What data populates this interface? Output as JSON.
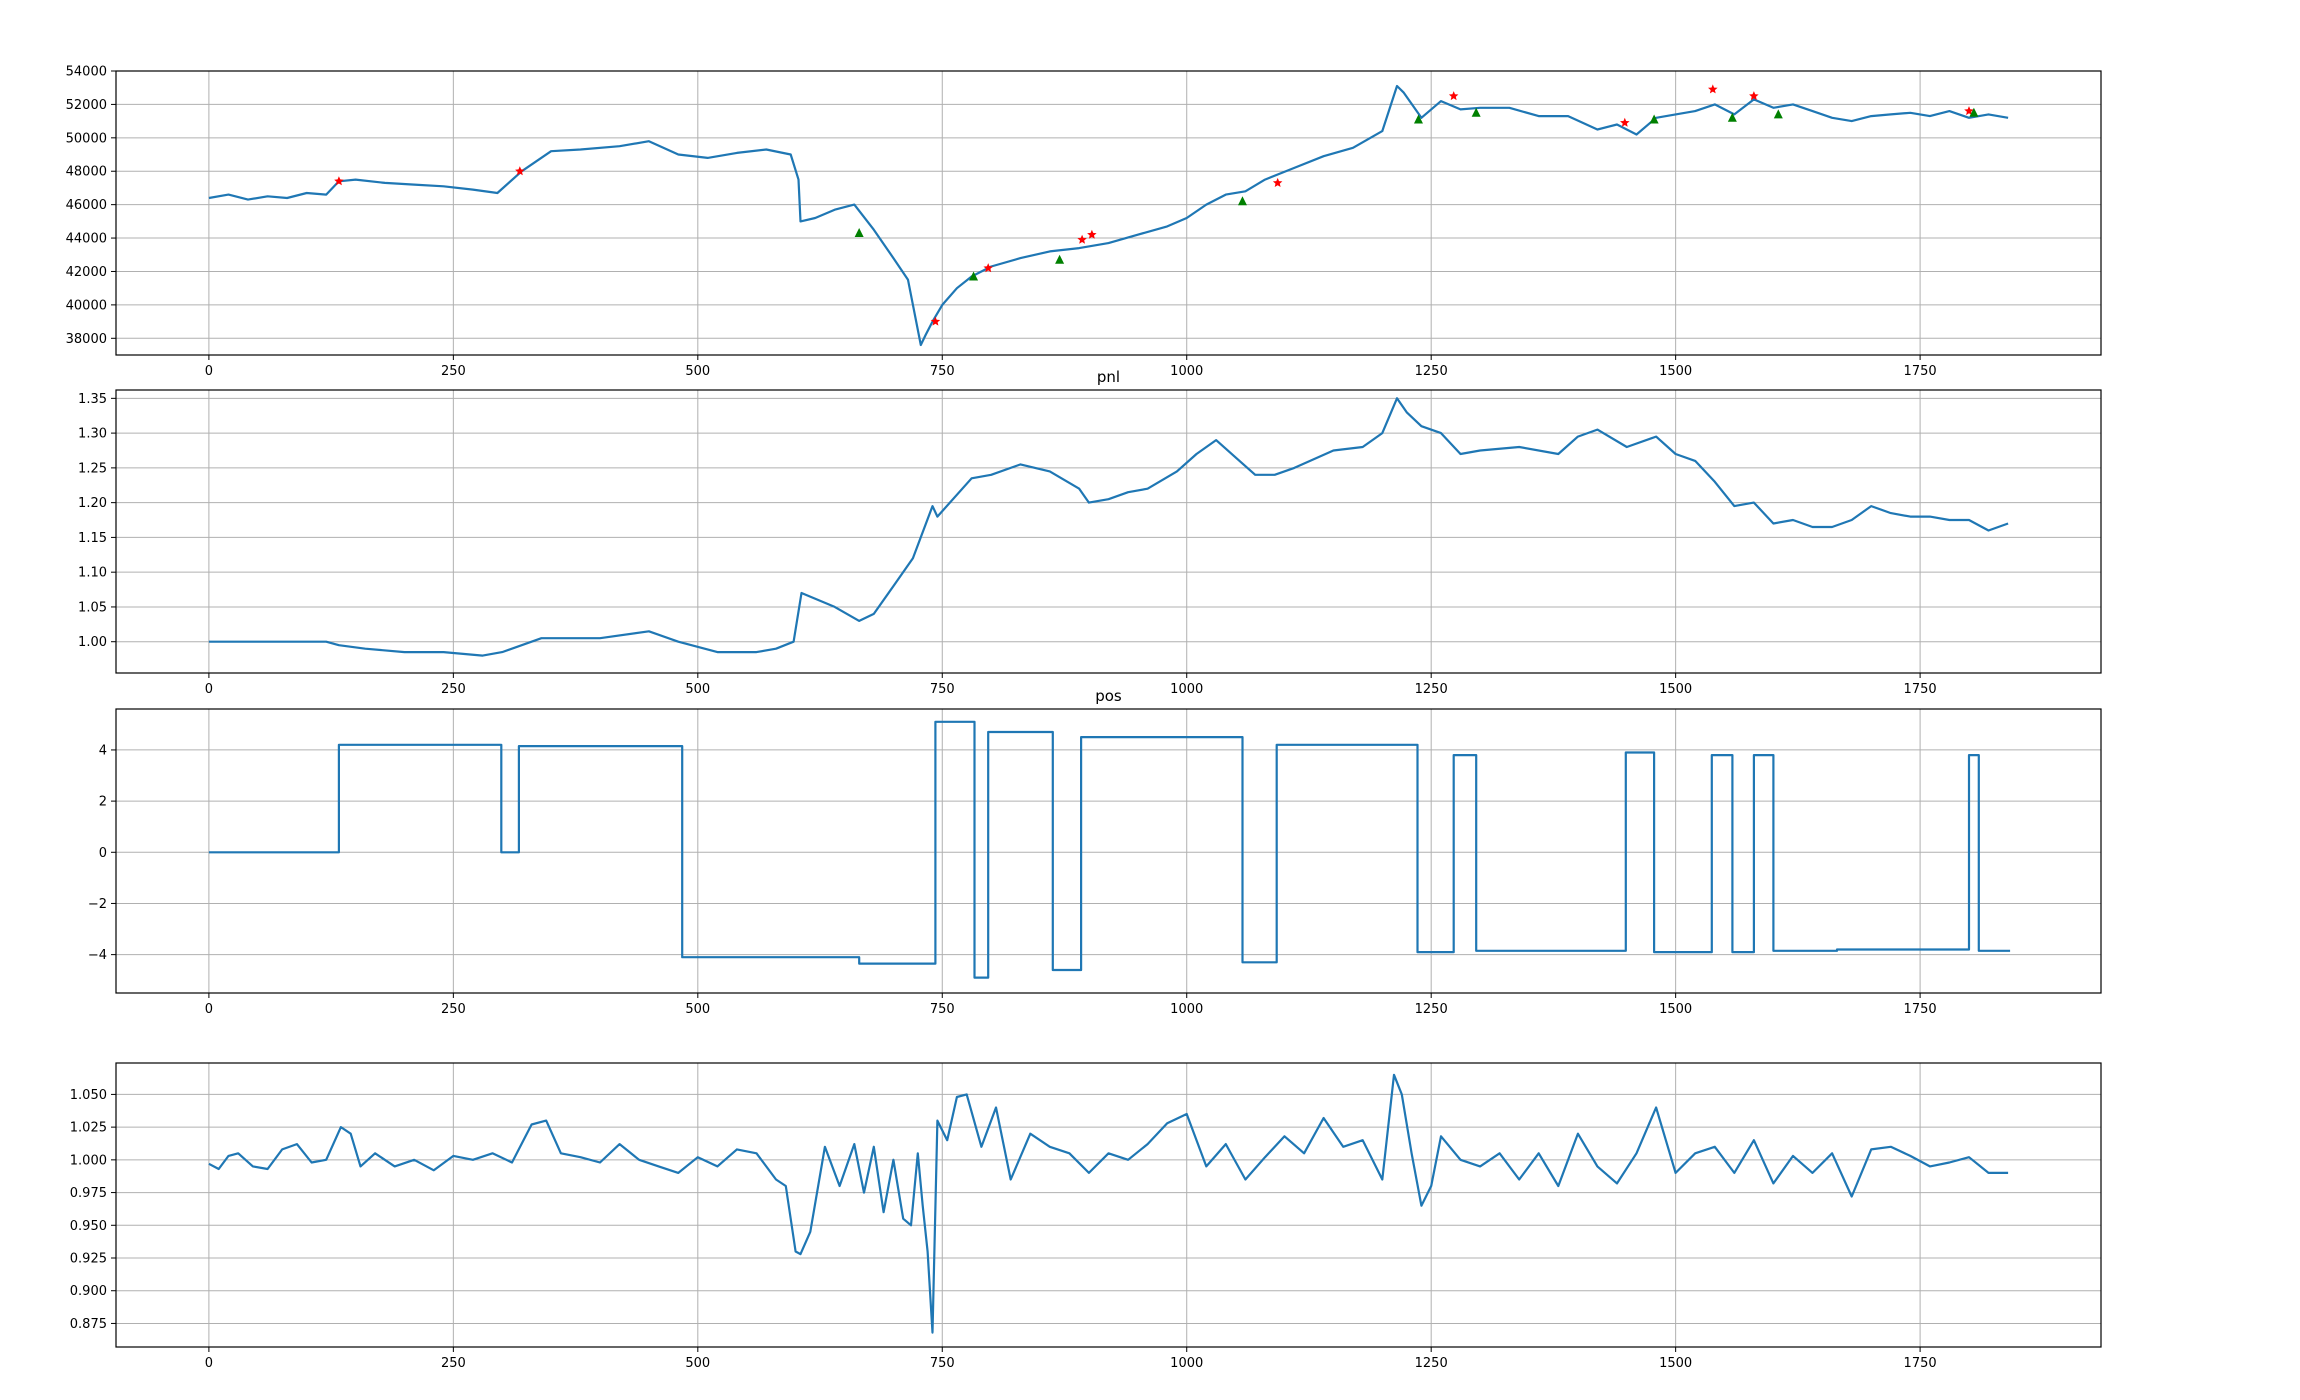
{
  "colors": {
    "line": "#1f77b4",
    "sell_marker": "#ff0000",
    "buy_marker": "#008000",
    "grid": "#b0b0b0"
  },
  "chart_data": [
    {
      "type": "line",
      "title": "",
      "xlim": [
        -95,
        1935
      ],
      "ylim": [
        37000,
        54000
      ],
      "xticks": [
        0,
        250,
        500,
        750,
        1000,
        1250,
        1500,
        1750
      ],
      "yticks": [
        38000,
        40000,
        42000,
        44000,
        46000,
        48000,
        50000,
        52000,
        54000
      ],
      "ytick_decimals": 0,
      "grid": true,
      "series": [
        {
          "x": [
            0,
            20,
            40,
            60,
            80,
            100,
            120,
            133,
            150,
            180,
            210,
            240,
            270,
            295,
            320,
            350,
            380,
            420,
            450,
            480,
            510,
            540,
            570,
            595,
            603,
            605,
            620,
            640,
            660,
            680,
            700,
            715,
            728,
            733,
            740,
            750,
            765,
            780,
            800,
            830,
            860,
            890,
            920,
            950,
            980,
            1000,
            1020,
            1040,
            1060,
            1080,
            1110,
            1140,
            1170,
            1200,
            1215,
            1222,
            1240,
            1260,
            1280,
            1300,
            1330,
            1360,
            1390,
            1420,
            1440,
            1460,
            1480,
            1500,
            1520,
            1540,
            1560,
            1580,
            1600,
            1620,
            1640,
            1660,
            1680,
            1700,
            1720,
            1740,
            1760,
            1780,
            1800,
            1820,
            1840
          ],
          "y": [
            46400,
            46600,
            46300,
            46500,
            46400,
            46700,
            46600,
            47400,
            47500,
            47300,
            47200,
            47100,
            46900,
            46700,
            48000,
            49200,
            49300,
            49500,
            49800,
            49000,
            48800,
            49100,
            49300,
            49000,
            47500,
            45000,
            45200,
            45700,
            46000,
            44500,
            42800,
            41500,
            37600,
            38200,
            39000,
            40000,
            41000,
            41700,
            42300,
            42800,
            43200,
            43400,
            43700,
            44200,
            44700,
            45200,
            46000,
            46600,
            46800,
            47500,
            48200,
            48900,
            49400,
            50400,
            53100,
            52700,
            51200,
            52200,
            51700,
            51800,
            51800,
            51300,
            51300,
            50500,
            50800,
            50200,
            51200,
            51400,
            51600,
            52000,
            51400,
            52300,
            51800,
            52000,
            51600,
            51200,
            51000,
            51300,
            51400,
            51500,
            51300,
            51600,
            51200,
            51400,
            51200
          ]
        }
      ],
      "markers": {
        "sell": {
          "x": [
            133,
            318,
            743,
            797,
            893,
            903,
            1093,
            1273,
            1448,
            1538,
            1580,
            1800
          ],
          "y": [
            47400,
            48000,
            39000,
            42200,
            43900,
            44200,
            47300,
            52500,
            50900,
            52900,
            52500,
            51600
          ]
        },
        "buy": {
          "x": [
            665,
            782,
            870,
            1057,
            1237,
            1296,
            1478,
            1558,
            1605,
            1805
          ],
          "y": [
            44300,
            41700,
            42700,
            46200,
            51100,
            51500,
            51100,
            51200,
            51400,
            51500
          ]
        }
      }
    },
    {
      "type": "line",
      "title": "pnl",
      "xlim": [
        -95,
        1935
      ],
      "ylim": [
        0.955,
        1.362
      ],
      "xticks": [
        0,
        250,
        500,
        750,
        1000,
        1250,
        1500,
        1750
      ],
      "yticks": [
        1.0,
        1.05,
        1.1,
        1.15,
        1.2,
        1.25,
        1.3,
        1.35
      ],
      "ytick_decimals": 2,
      "grid": true,
      "series": [
        {
          "x": [
            0,
            60,
            120,
            133,
            160,
            200,
            240,
            280,
            300,
            340,
            400,
            450,
            480,
            520,
            560,
            580,
            598,
            606,
            640,
            665,
            680,
            700,
            720,
            740,
            745,
            780,
            800,
            830,
            860,
            890,
            900,
            920,
            940,
            960,
            990,
            1010,
            1030,
            1050,
            1070,
            1090,
            1110,
            1150,
            1180,
            1200,
            1215,
            1225,
            1240,
            1260,
            1280,
            1300,
            1340,
            1380,
            1400,
            1420,
            1450,
            1480,
            1500,
            1520,
            1540,
            1560,
            1580,
            1600,
            1620,
            1640,
            1660,
            1680,
            1700,
            1720,
            1740,
            1760,
            1780,
            1800,
            1820,
            1840
          ],
          "y": [
            1.0,
            1.0,
            1.0,
            0.995,
            0.99,
            0.985,
            0.985,
            0.98,
            0.985,
            1.005,
            1.005,
            1.015,
            1.0,
            0.985,
            0.985,
            0.99,
            1.0,
            1.07,
            1.05,
            1.03,
            1.04,
            1.08,
            1.12,
            1.195,
            1.18,
            1.235,
            1.24,
            1.255,
            1.245,
            1.22,
            1.2,
            1.205,
            1.215,
            1.22,
            1.245,
            1.27,
            1.29,
            1.265,
            1.24,
            1.24,
            1.25,
            1.275,
            1.28,
            1.3,
            1.35,
            1.33,
            1.31,
            1.3,
            1.27,
            1.275,
            1.28,
            1.27,
            1.295,
            1.305,
            1.28,
            1.295,
            1.27,
            1.26,
            1.23,
            1.195,
            1.2,
            1.17,
            1.175,
            1.165,
            1.165,
            1.175,
            1.195,
            1.185,
            1.18,
            1.18,
            1.175,
            1.175,
            1.16,
            1.17
          ]
        }
      ]
    },
    {
      "type": "line",
      "title": "pos",
      "xlim": [
        -95,
        1935
      ],
      "ylim": [
        -5.5,
        5.6
      ],
      "xticks": [
        0,
        250,
        500,
        750,
        1000,
        1250,
        1500,
        1750
      ],
      "yticks": [
        -4,
        -2,
        0,
        2,
        4
      ],
      "ytick_decimals": 0,
      "step": true,
      "grid": true,
      "series": [
        {
          "x": [
            0,
            133,
            299,
            317,
            484,
            665,
            743,
            783,
            797,
            863,
            892,
            1057,
            1092,
            1236,
            1273,
            1296,
            1449,
            1478,
            1537,
            1558,
            1580,
            1600,
            1665,
            1800,
            1810,
            1842
          ],
          "y": [
            0,
            4.2,
            0,
            4.15,
            -4.1,
            -4.35,
            5.1,
            -4.9,
            4.7,
            -4.6,
            4.5,
            -4.3,
            4.2,
            -3.9,
            3.8,
            -3.85,
            3.9,
            -3.9,
            3.8,
            -3.9,
            3.8,
            -3.85,
            -3.8,
            3.8,
            -3.85,
            -3.85
          ]
        }
      ]
    },
    {
      "type": "line",
      "title": "",
      "xlim": [
        -95,
        1935
      ],
      "ylim": [
        0.857,
        1.074
      ],
      "xticks": [
        0,
        250,
        500,
        750,
        1000,
        1250,
        1500,
        1750
      ],
      "yticks": [
        0.875,
        0.9,
        0.925,
        0.95,
        0.975,
        1.0,
        1.025,
        1.05
      ],
      "ytick_decimals": 3,
      "grid": true,
      "series": [
        {
          "x": [
            0,
            10,
            20,
            30,
            45,
            60,
            75,
            90,
            105,
            120,
            135,
            145,
            155,
            170,
            190,
            210,
            230,
            250,
            270,
            290,
            310,
            330,
            345,
            360,
            380,
            400,
            420,
            440,
            460,
            480,
            500,
            520,
            540,
            560,
            580,
            590,
            600,
            605,
            615,
            630,
            645,
            660,
            670,
            680,
            690,
            700,
            710,
            718,
            725,
            730,
            735,
            740,
            745,
            755,
            765,
            775,
            790,
            805,
            820,
            840,
            860,
            880,
            900,
            920,
            940,
            960,
            980,
            1000,
            1020,
            1040,
            1060,
            1080,
            1100,
            1120,
            1140,
            1160,
            1180,
            1200,
            1212,
            1220,
            1230,
            1240,
            1250,
            1260,
            1280,
            1300,
            1320,
            1340,
            1360,
            1380,
            1400,
            1420,
            1440,
            1460,
            1480,
            1500,
            1520,
            1540,
            1560,
            1580,
            1600,
            1620,
            1640,
            1660,
            1680,
            1700,
            1720,
            1740,
            1760,
            1780,
            1800,
            1820,
            1840
          ],
          "y": [
            0.997,
            0.993,
            1.003,
            1.005,
            0.995,
            0.993,
            1.008,
            1.012,
            0.998,
            1.0,
            1.025,
            1.02,
            0.995,
            1.005,
            0.995,
            1.0,
            0.992,
            1.003,
            1.0,
            1.005,
            0.998,
            1.027,
            1.03,
            1.005,
            1.002,
            0.998,
            1.012,
            1.0,
            0.995,
            0.99,
            1.002,
            0.995,
            1.008,
            1.005,
            0.985,
            0.98,
            0.93,
            0.928,
            0.945,
            1.01,
            0.98,
            1.012,
            0.975,
            1.01,
            0.96,
            1.0,
            0.955,
            0.95,
            1.005,
            0.965,
            0.93,
            0.868,
            1.03,
            1.015,
            1.048,
            1.05,
            1.01,
            1.04,
            0.985,
            1.02,
            1.01,
            1.005,
            0.99,
            1.005,
            1.0,
            1.012,
            1.028,
            1.035,
            0.995,
            1.012,
            0.985,
            1.002,
            1.018,
            1.005,
            1.032,
            1.01,
            1.015,
            0.985,
            1.065,
            1.05,
            1.005,
            0.965,
            0.98,
            1.018,
            1.0,
            0.995,
            1.005,
            0.985,
            1.005,
            0.98,
            1.02,
            0.995,
            0.982,
            1.005,
            1.04,
            0.99,
            1.005,
            1.01,
            0.99,
            1.015,
            0.982,
            1.003,
            0.99,
            1.005,
            0.972,
            1.008,
            1.01,
            1.003,
            0.995,
            0.998,
            1.002,
            0.99,
            0.99
          ]
        }
      ]
    }
  ]
}
